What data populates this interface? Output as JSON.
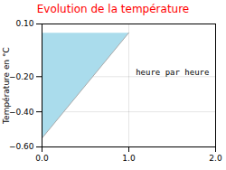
{
  "chart_data": {
    "type": "area",
    "title": "Evolution de la température",
    "ylabel": "Température en °C",
    "series": [
      {
        "type": "area",
        "color": "#aadcec",
        "x": [
          0,
          0,
          1
        ],
        "values": [
          -0.55,
          0.05,
          0.05
        ]
      },
      {
        "type": "line",
        "color": "#aaaaaa",
        "x": [
          0,
          1
        ],
        "values": [
          -0.55,
          0.05
        ]
      }
    ],
    "annotations": [
      {
        "text": "heure par heure",
        "x": 1.08,
        "y": -0.175
      }
    ],
    "xlim": [
      0,
      2
    ],
    "ylim": [
      -0.6,
      0.1
    ],
    "xticks": [
      0,
      1,
      2
    ],
    "yticks": [
      -0.6,
      -0.4,
      -0.2,
      0.1
    ],
    "grid": true
  }
}
